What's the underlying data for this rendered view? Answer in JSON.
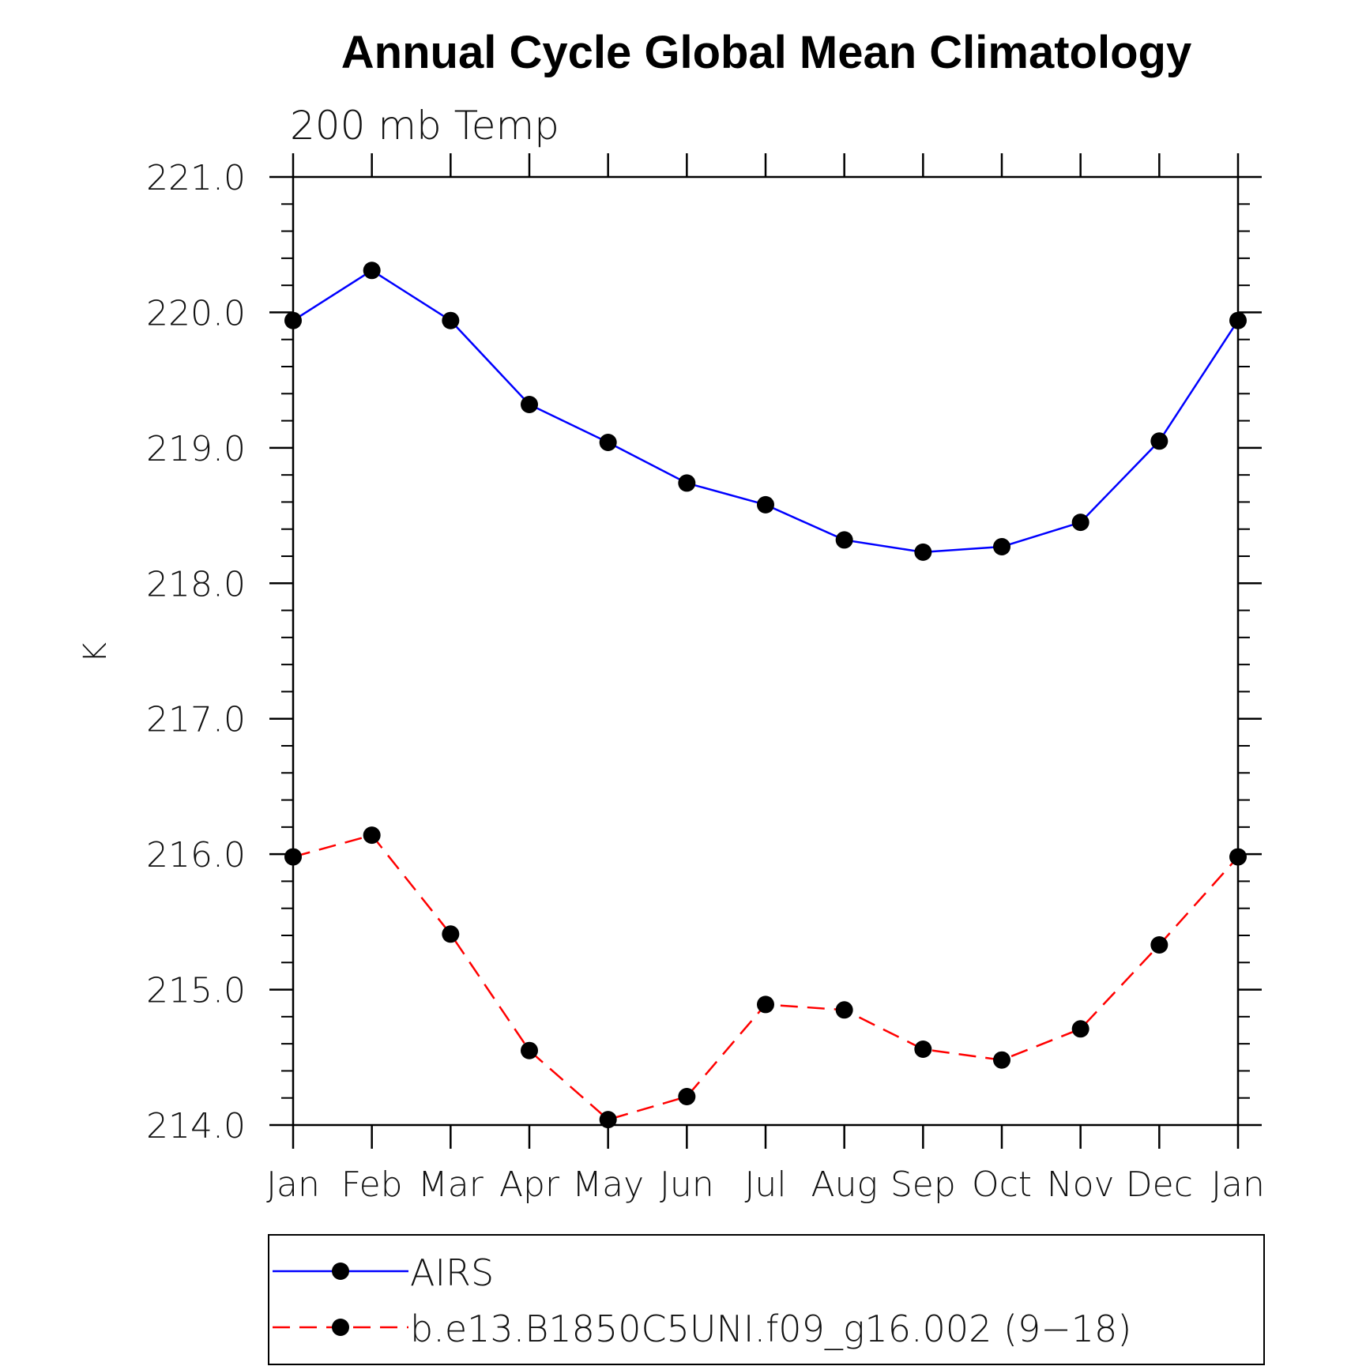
{
  "chart_data": {
    "type": "line",
    "title": "Annual Cycle Global Mean Climatology",
    "subtitle": "200 mb Temp",
    "xlabel": "",
    "ylabel": "K",
    "categories": [
      "Jan",
      "Feb",
      "Mar",
      "Apr",
      "May",
      "Jun",
      "Jul",
      "Aug",
      "Sep",
      "Oct",
      "Nov",
      "Dec",
      "Jan"
    ],
    "ylim": [
      214.0,
      221.0
    ],
    "yticks": [
      "214.0",
      "215.0",
      "216.0",
      "217.0",
      "218.0",
      "219.0",
      "220.0",
      "221.0"
    ],
    "grid": false,
    "legend_position": "bottom",
    "series": [
      {
        "name": "AIRS",
        "color": "#0000ff",
        "dash": "solid",
        "marker": "filled-circle",
        "values": [
          219.94,
          220.31,
          219.94,
          219.32,
          219.04,
          218.74,
          218.58,
          218.32,
          218.23,
          218.27,
          218.45,
          219.05,
          219.94
        ]
      },
      {
        "name": "b.e13.B1850C5UNI.f09_g16.002 (9−18)",
        "color": "#ff0000",
        "dash": "dashed",
        "marker": "filled-circle",
        "values": [
          215.98,
          216.14,
          215.41,
          214.55,
          214.04,
          214.21,
          214.89,
          214.85,
          214.56,
          214.48,
          214.71,
          215.33,
          215.98
        ]
      }
    ]
  }
}
